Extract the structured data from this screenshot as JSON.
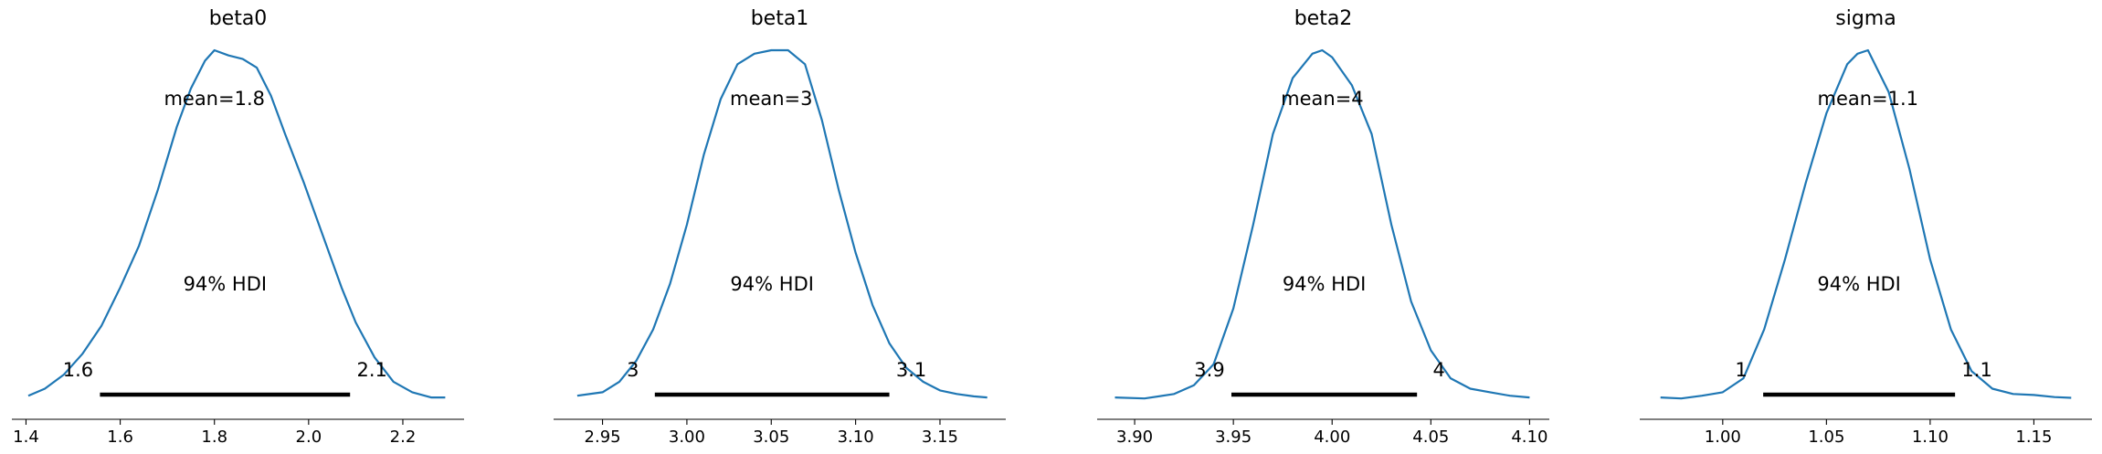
{
  "chart_data": [
    {
      "type": "line",
      "title": "beta0",
      "mean_label": "mean=1.8",
      "hdi_label": "94% HDI",
      "hdi": [
        1.557,
        2.088
      ],
      "hdi_low_label": "1.6",
      "hdi_high_label": "2.1",
      "xlim": [
        1.37,
        2.33
      ],
      "xticks": [
        1.4,
        1.6,
        1.8,
        2.0,
        2.2
      ],
      "xtick_labels": [
        "1.4",
        "1.6",
        "1.8",
        "2.0",
        "2.2"
      ],
      "density": {
        "x": [
          1.405,
          1.44,
          1.48,
          1.52,
          1.56,
          1.6,
          1.64,
          1.68,
          1.72,
          1.75,
          1.78,
          1.8,
          1.83,
          1.86,
          1.89,
          1.92,
          1.95,
          1.99,
          2.03,
          2.07,
          2.1,
          2.14,
          2.18,
          2.22,
          2.26,
          2.29
        ],
        "y": [
          0.01,
          0.03,
          0.07,
          0.13,
          0.21,
          0.32,
          0.44,
          0.6,
          0.78,
          0.89,
          0.97,
          1.0,
          0.985,
          0.975,
          0.95,
          0.87,
          0.76,
          0.62,
          0.47,
          0.32,
          0.22,
          0.12,
          0.05,
          0.02,
          0.005,
          0.005
        ]
      }
    },
    {
      "type": "line",
      "title": "beta1",
      "mean_label": "mean=3",
      "hdi_label": "94% HDI",
      "hdi": [
        2.981,
        3.12
      ],
      "hdi_low_label": "3",
      "hdi_high_label": "3.1",
      "xlim": [
        2.921,
        3.189
      ],
      "xticks": [
        2.95,
        3.0,
        3.05,
        3.1,
        3.15
      ],
      "xtick_labels": [
        "2.95",
        "3.00",
        "3.05",
        "3.10",
        "3.15"
      ],
      "density": {
        "x": [
          2.935,
          2.95,
          2.96,
          2.97,
          2.98,
          2.99,
          3.0,
          3.01,
          3.02,
          3.03,
          3.04,
          3.05,
          3.06,
          3.07,
          3.08,
          3.09,
          3.1,
          3.11,
          3.12,
          3.13,
          3.14,
          3.15,
          3.16,
          3.17,
          3.178
        ],
        "y": [
          0.01,
          0.02,
          0.05,
          0.11,
          0.2,
          0.33,
          0.5,
          0.7,
          0.86,
          0.96,
          0.99,
          1.0,
          1.0,
          0.96,
          0.8,
          0.6,
          0.42,
          0.27,
          0.16,
          0.09,
          0.05,
          0.025,
          0.015,
          0.008,
          0.005
        ]
      }
    },
    {
      "type": "line",
      "title": "beta2",
      "mean_label": "mean=4",
      "hdi_label": "94% HDI",
      "hdi": [
        3.949,
        4.043
      ],
      "hdi_low_label": "3.9",
      "hdi_high_label": "4",
      "xlim": [
        3.881,
        4.11
      ],
      "xticks": [
        3.9,
        3.95,
        4.0,
        4.05,
        4.1
      ],
      "xtick_labels": [
        "3.90",
        "3.95",
        "4.00",
        "4.05",
        "4.10"
      ],
      "density": {
        "x": [
          3.89,
          3.905,
          3.92,
          3.93,
          3.94,
          3.95,
          3.96,
          3.97,
          3.98,
          3.99,
          3.995,
          4.0,
          4.01,
          4.02,
          4.03,
          4.04,
          4.05,
          4.06,
          4.07,
          4.08,
          4.09,
          4.1
        ],
        "y": [
          0.005,
          0.002,
          0.015,
          0.04,
          0.1,
          0.26,
          0.5,
          0.76,
          0.92,
          0.99,
          1.0,
          0.98,
          0.9,
          0.76,
          0.5,
          0.28,
          0.14,
          0.06,
          0.03,
          0.02,
          0.01,
          0.005
        ]
      }
    },
    {
      "type": "line",
      "title": "sigma",
      "mean_label": "mean=1.1",
      "hdi_label": "94% HDI",
      "hdi": [
        1.0195,
        1.112
      ],
      "hdi_low_label": "1",
      "hdi_high_label": "1.1",
      "xlim": [
        0.96,
        1.178
      ],
      "xticks": [
        1.0,
        1.05,
        1.1,
        1.15
      ],
      "xtick_labels": [
        "1.00",
        "1.05",
        "1.10",
        "1.15"
      ],
      "density": {
        "x": [
          0.97,
          0.98,
          0.99,
          1.0,
          1.01,
          1.02,
          1.03,
          1.04,
          1.05,
          1.06,
          1.065,
          1.07,
          1.08,
          1.09,
          1.1,
          1.11,
          1.12,
          1.13,
          1.14,
          1.15,
          1.16,
          1.168
        ],
        "y": [
          0.005,
          0.002,
          0.01,
          0.02,
          0.06,
          0.2,
          0.4,
          0.62,
          0.82,
          0.96,
          0.99,
          1.0,
          0.88,
          0.66,
          0.4,
          0.2,
          0.08,
          0.03,
          0.015,
          0.012,
          0.006,
          0.004
        ]
      }
    }
  ],
  "colors": {
    "kde": "#1f77b4",
    "hdi": "#000000",
    "axis": "#000000"
  }
}
